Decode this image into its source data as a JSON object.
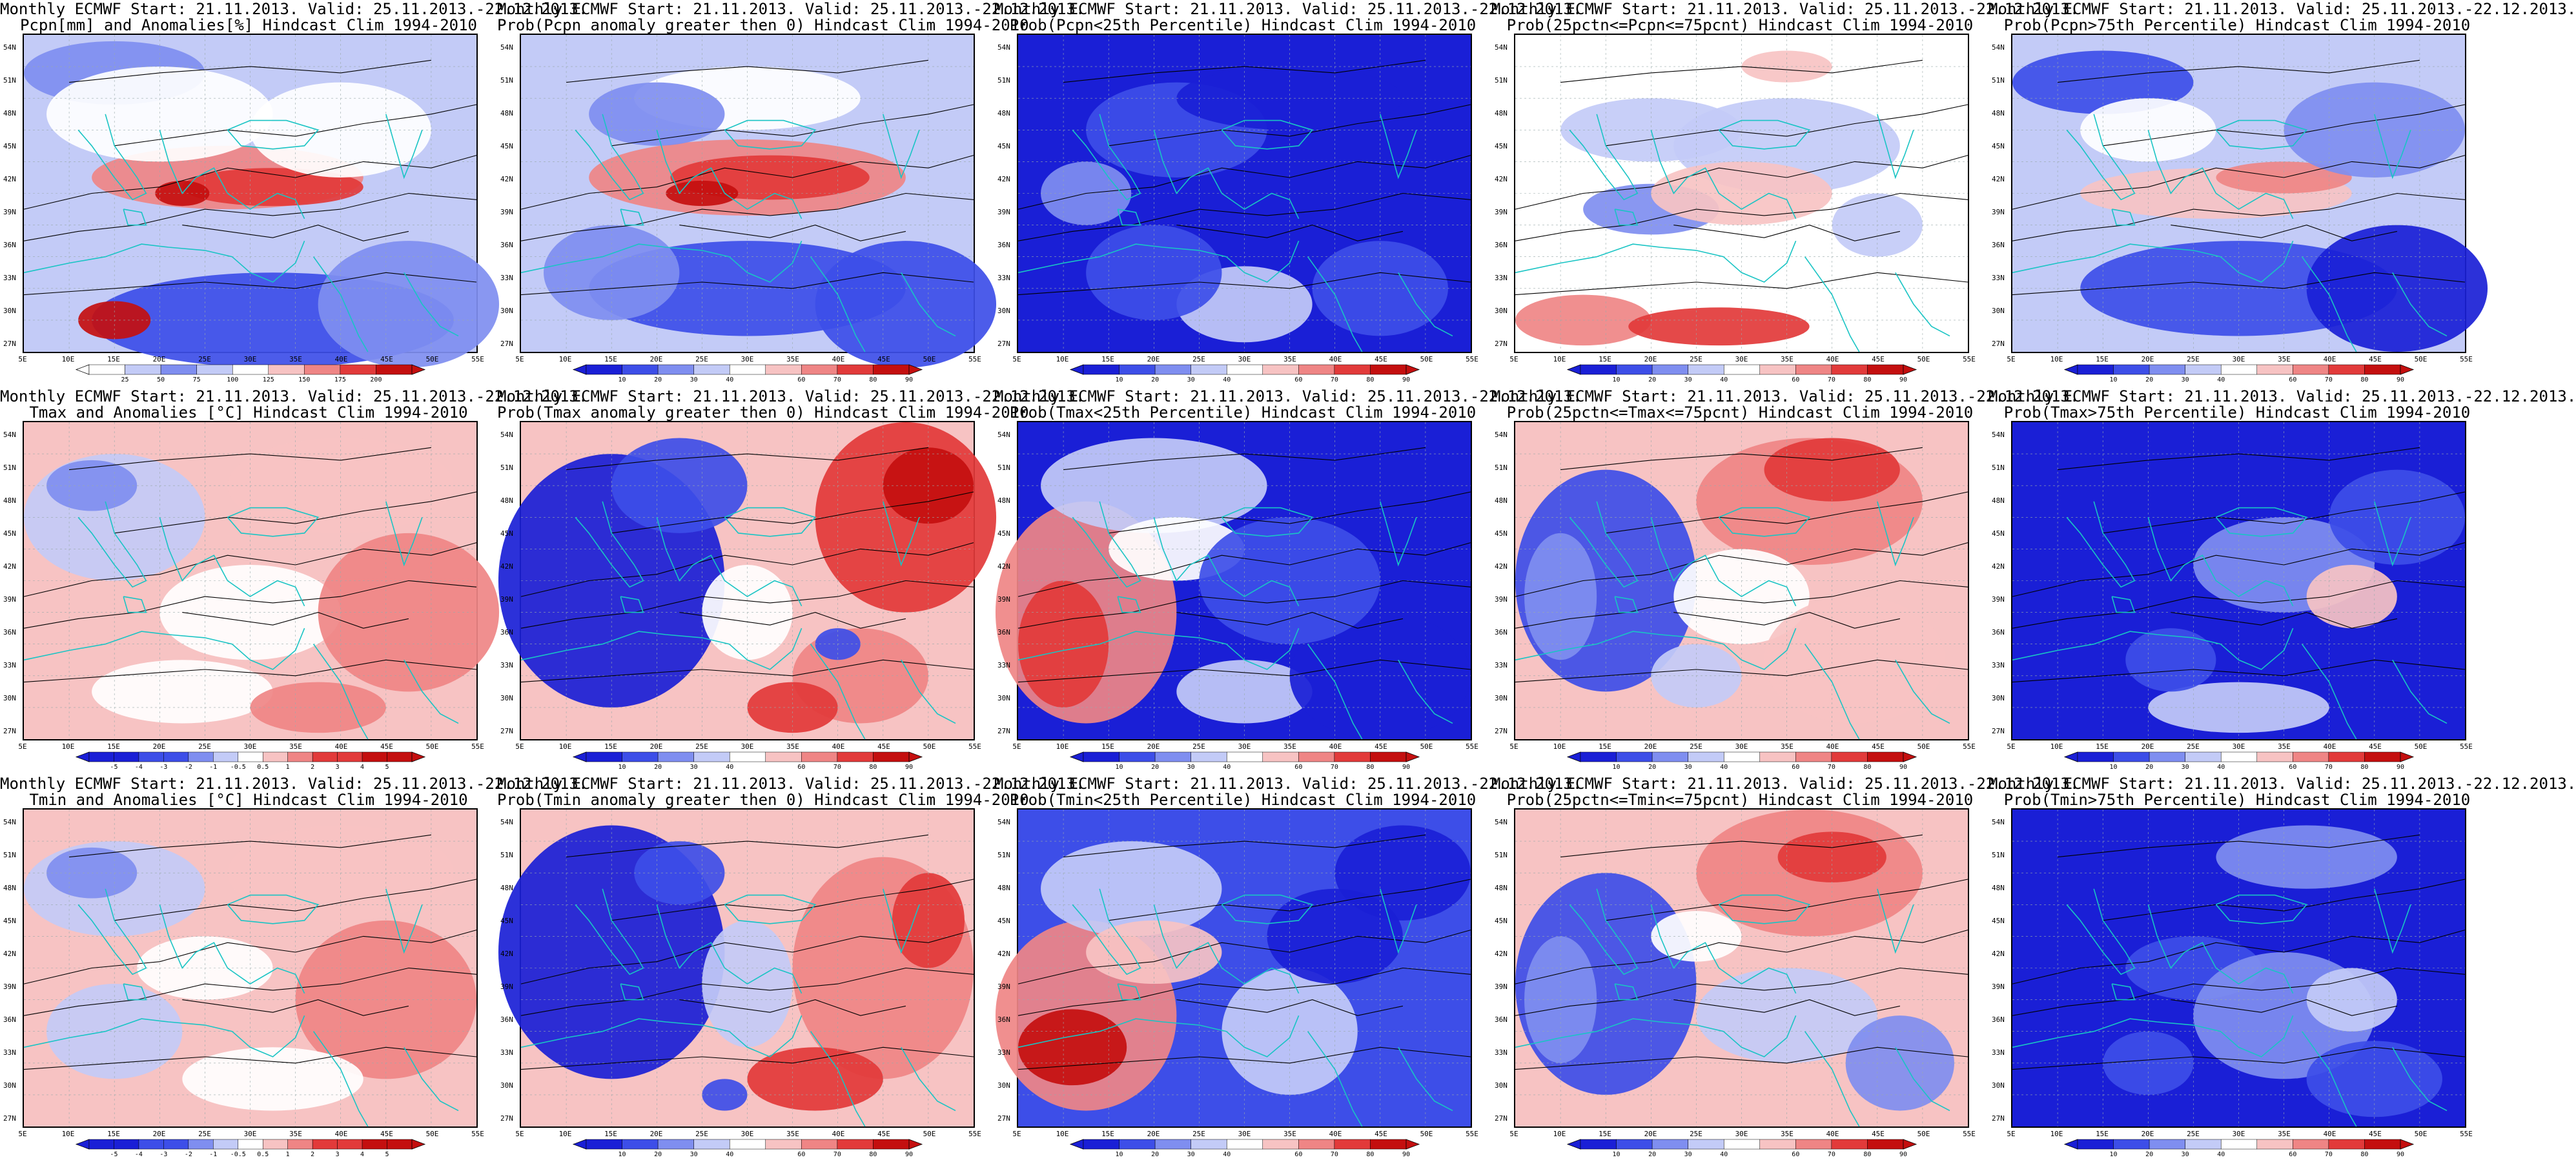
{
  "common": {
    "latitudes": [
      "54N",
      "51N",
      "48N",
      "45N",
      "42N",
      "39N",
      "36N",
      "33N",
      "30N",
      "27N"
    ],
    "longitudes": [
      "5E",
      "10E",
      "15E",
      "20E",
      "25E",
      "30E",
      "35E",
      "40E",
      "45E",
      "50E",
      "55E"
    ],
    "prob_ticks": [
      "10",
      "20",
      "30",
      "40",
      "60",
      "70",
      "80",
      "90"
    ],
    "temp_anom_ticks": [
      "-5",
      "-4",
      "-3",
      "-2",
      "-1",
      "-0.5",
      "0.5",
      "1",
      "2",
      "3",
      "4",
      "5"
    ],
    "precip_ticks": [
      "25",
      "50",
      "75",
      "100",
      "125",
      "150",
      "175",
      "200"
    ],
    "colors": {
      "deep_blue": "#1a1fd6",
      "blue": "#3d4ee8",
      "mid_blue": "#7f8ef0",
      "light_blue": "#c3cbf7",
      "white": "#ffffff",
      "light_red": "#f7c3c3",
      "mid_red": "#ef8585",
      "red": "#e23a3a",
      "deep_red": "#c40f0f",
      "coast": "#19c4c4",
      "contour": "#000000"
    }
  },
  "panels": [
    {
      "line1": "Monthly ECMWF Start: 21.11.2013. Valid: 25.11.2013.-22.12.2013.",
      "line2": "Pcpn[mm] and Anomalies[%] Hindcast Clim 1994-2010",
      "scale": "precip",
      "field": "pcpn_anom"
    },
    {
      "line1": "Monthly ECMWF Start: 21.11.2013. Valid: 25.11.2013.-22.12.2013.",
      "line2": "Prob(Pcpn anomaly greater then 0) Hindcast Clim 1994-2010",
      "scale": "prob",
      "field": "pcpn_pos"
    },
    {
      "line1": "Monthly ECMWF Start: 21.11.2013. Valid: 25.11.2013.-22.12.2013.",
      "line2": "Prob(Pcpn<25th Percentile) Hindcast Clim 1994-2010",
      "scale": "prob",
      "field": "pcpn_low"
    },
    {
      "line1": "Monthly ECMWF Start: 21.11.2013. Valid: 25.11.2013.-22.12.2013.",
      "line2": "Prob(25pctn<=Pcpn<=75pcnt) Hindcast Clim 1994-2010",
      "scale": "prob",
      "field": "pcpn_mid"
    },
    {
      "line1": "Monthly ECMWF Start: 21.11.2013. Valid: 25.11.2013.-22.12.2013.",
      "line2": "Prob(Pcpn>75th Percentile) Hindcast Clim 1994-2010",
      "scale": "prob",
      "field": "pcpn_high"
    },
    {
      "line1": "Monthly ECMWF Start: 21.11.2013. Valid: 25.11.2013.-22.12.2013.",
      "line2": "Tmax and Anomalies [°C] Hindcast Clim 1994-2010",
      "scale": "temp",
      "field": "tmax_anom"
    },
    {
      "line1": "Monthly ECMWF Start: 21.11.2013. Valid: 25.11.2013.-22.12.2013.",
      "line2": "Prob(Tmax anomaly greater then 0) Hindcast Clim 1994-2010",
      "scale": "prob",
      "field": "tmax_pos"
    },
    {
      "line1": "Monthly ECMWF Start: 21.11.2013. Valid: 25.11.2013.-22.12.2013.",
      "line2": "Prob(Tmax<25th Percentile) Hindcast Clim 1994-2010",
      "scale": "prob",
      "field": "tmax_low"
    },
    {
      "line1": "Monthly ECMWF Start: 21.11.2013. Valid: 25.11.2013.-22.12.2013.",
      "line2": "Prob(25pctn<=Tmax<=75pcnt) Hindcast Clim 1994-2010",
      "scale": "prob",
      "field": "tmax_mid"
    },
    {
      "line1": "Monthly ECMWF Start: 21.11.2013. Valid: 25.11.2013.-22.12.2013.",
      "line2": "Prob(Tmax>75th Percentile) Hindcast Clim 1994-2010",
      "scale": "prob",
      "field": "tmax_high"
    },
    {
      "line1": "Monthly ECMWF Start: 21.11.2013. Valid: 25.11.2013.-22.12.2013.",
      "line2": "Tmin and Anomalies [°C] Hindcast Clim 1994-2010",
      "scale": "temp",
      "field": "tmin_anom"
    },
    {
      "line1": "Monthly ECMWF Start: 21.11.2013. Valid: 25.11.2013.-22.12.2013.",
      "line2": "Prob(Tmin anomaly greater then 0) Hindcast Clim 1994-2010",
      "scale": "prob",
      "field": "tmin_pos"
    },
    {
      "line1": "Monthly ECMWF Start: 21.11.2013. Valid: 25.11.2013.-22.12.2013.",
      "line2": "Prob(Tmin<25th Percentile) Hindcast Clim 1994-2010",
      "scale": "prob",
      "field": "tmin_low"
    },
    {
      "line1": "Monthly ECMWF Start: 21.11.2013. Valid: 25.11.2013.-22.12.2013.",
      "line2": "Prob(25pctn<=Tmin<=75pcnt) Hindcast Clim 1994-2010",
      "scale": "prob",
      "field": "tmin_mid"
    },
    {
      "line1": "Monthly ECMWF Start: 21.11.2013. Valid: 25.11.2013.-22.12.2013.",
      "line2": "Prob(Tmin>75th Percentile) Hindcast Clim 1994-2010",
      "scale": "prob",
      "field": "tmin_high"
    }
  ]
}
